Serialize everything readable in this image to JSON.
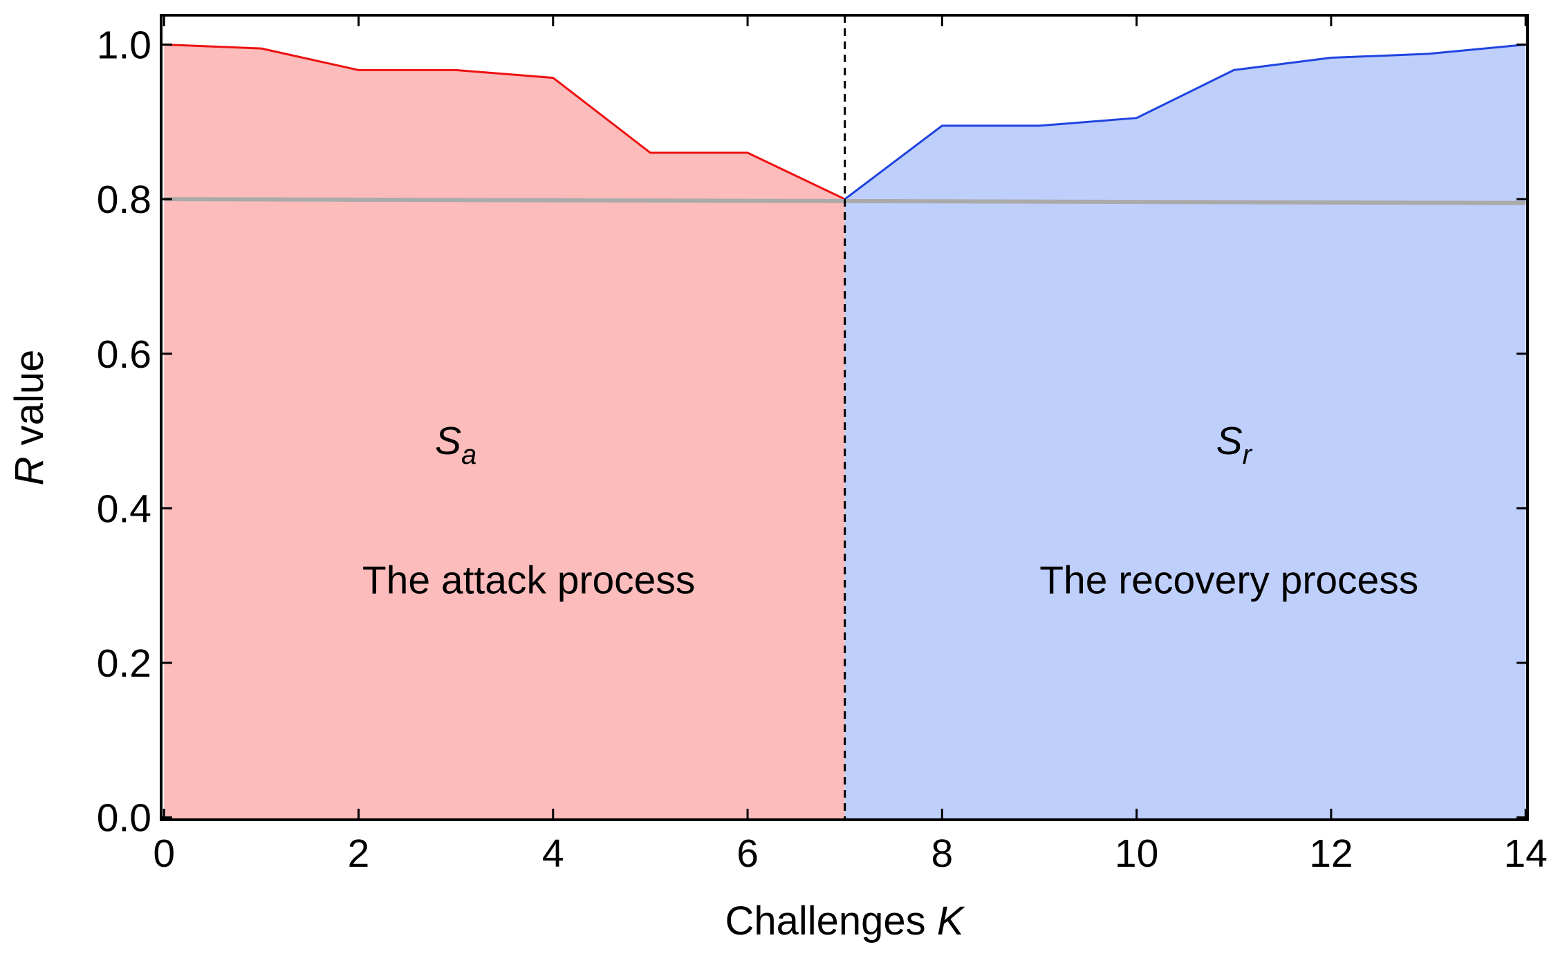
{
  "chart_data": {
    "type": "line",
    "xlabel": [
      "Challenges",
      "K"
    ],
    "ylabel": [
      "R",
      "value"
    ],
    "xlim": [
      -0.03,
      14.02
    ],
    "ylim": [
      -0.003,
      1.038
    ],
    "xticks": [
      0,
      2,
      4,
      6,
      8,
      10,
      12,
      14
    ],
    "yticks": [
      {
        "value": 0,
        "label": "0.0"
      },
      0.2,
      0.4,
      0.6,
      0.8,
      {
        "value": 1,
        "label": "1.0"
      }
    ],
    "vline": 7,
    "series": [
      {
        "color": "#ee1111",
        "fill_color": "#fcbcbc",
        "x": [
          0,
          1,
          2,
          3,
          4,
          5,
          6,
          7
        ],
        "values": [
          1.0,
          0.995,
          0.967,
          0.967,
          0.957,
          0.86,
          0.86,
          0.8
        ]
      },
      {
        "color": "#1f44e0",
        "fill_color": "#bfcffc",
        "x": [
          7,
          8,
          9,
          10,
          11,
          12,
          13,
          14
        ],
        "values": [
          0.8,
          0.895,
          0.895,
          0.905,
          0.967,
          0.983,
          0.988,
          1.0
        ]
      },
      {
        "color": "#aaaaaa",
        "x": [
          0,
          14
        ],
        "values": [
          0.8,
          0.795
        ]
      }
    ],
    "annotations": [
      {
        "text": "S",
        "subscript": "a"
      },
      {
        "text": "The attack process"
      },
      {
        "text": "S",
        "subscript": "r"
      },
      {
        "text": "The recovery process"
      }
    ]
  }
}
